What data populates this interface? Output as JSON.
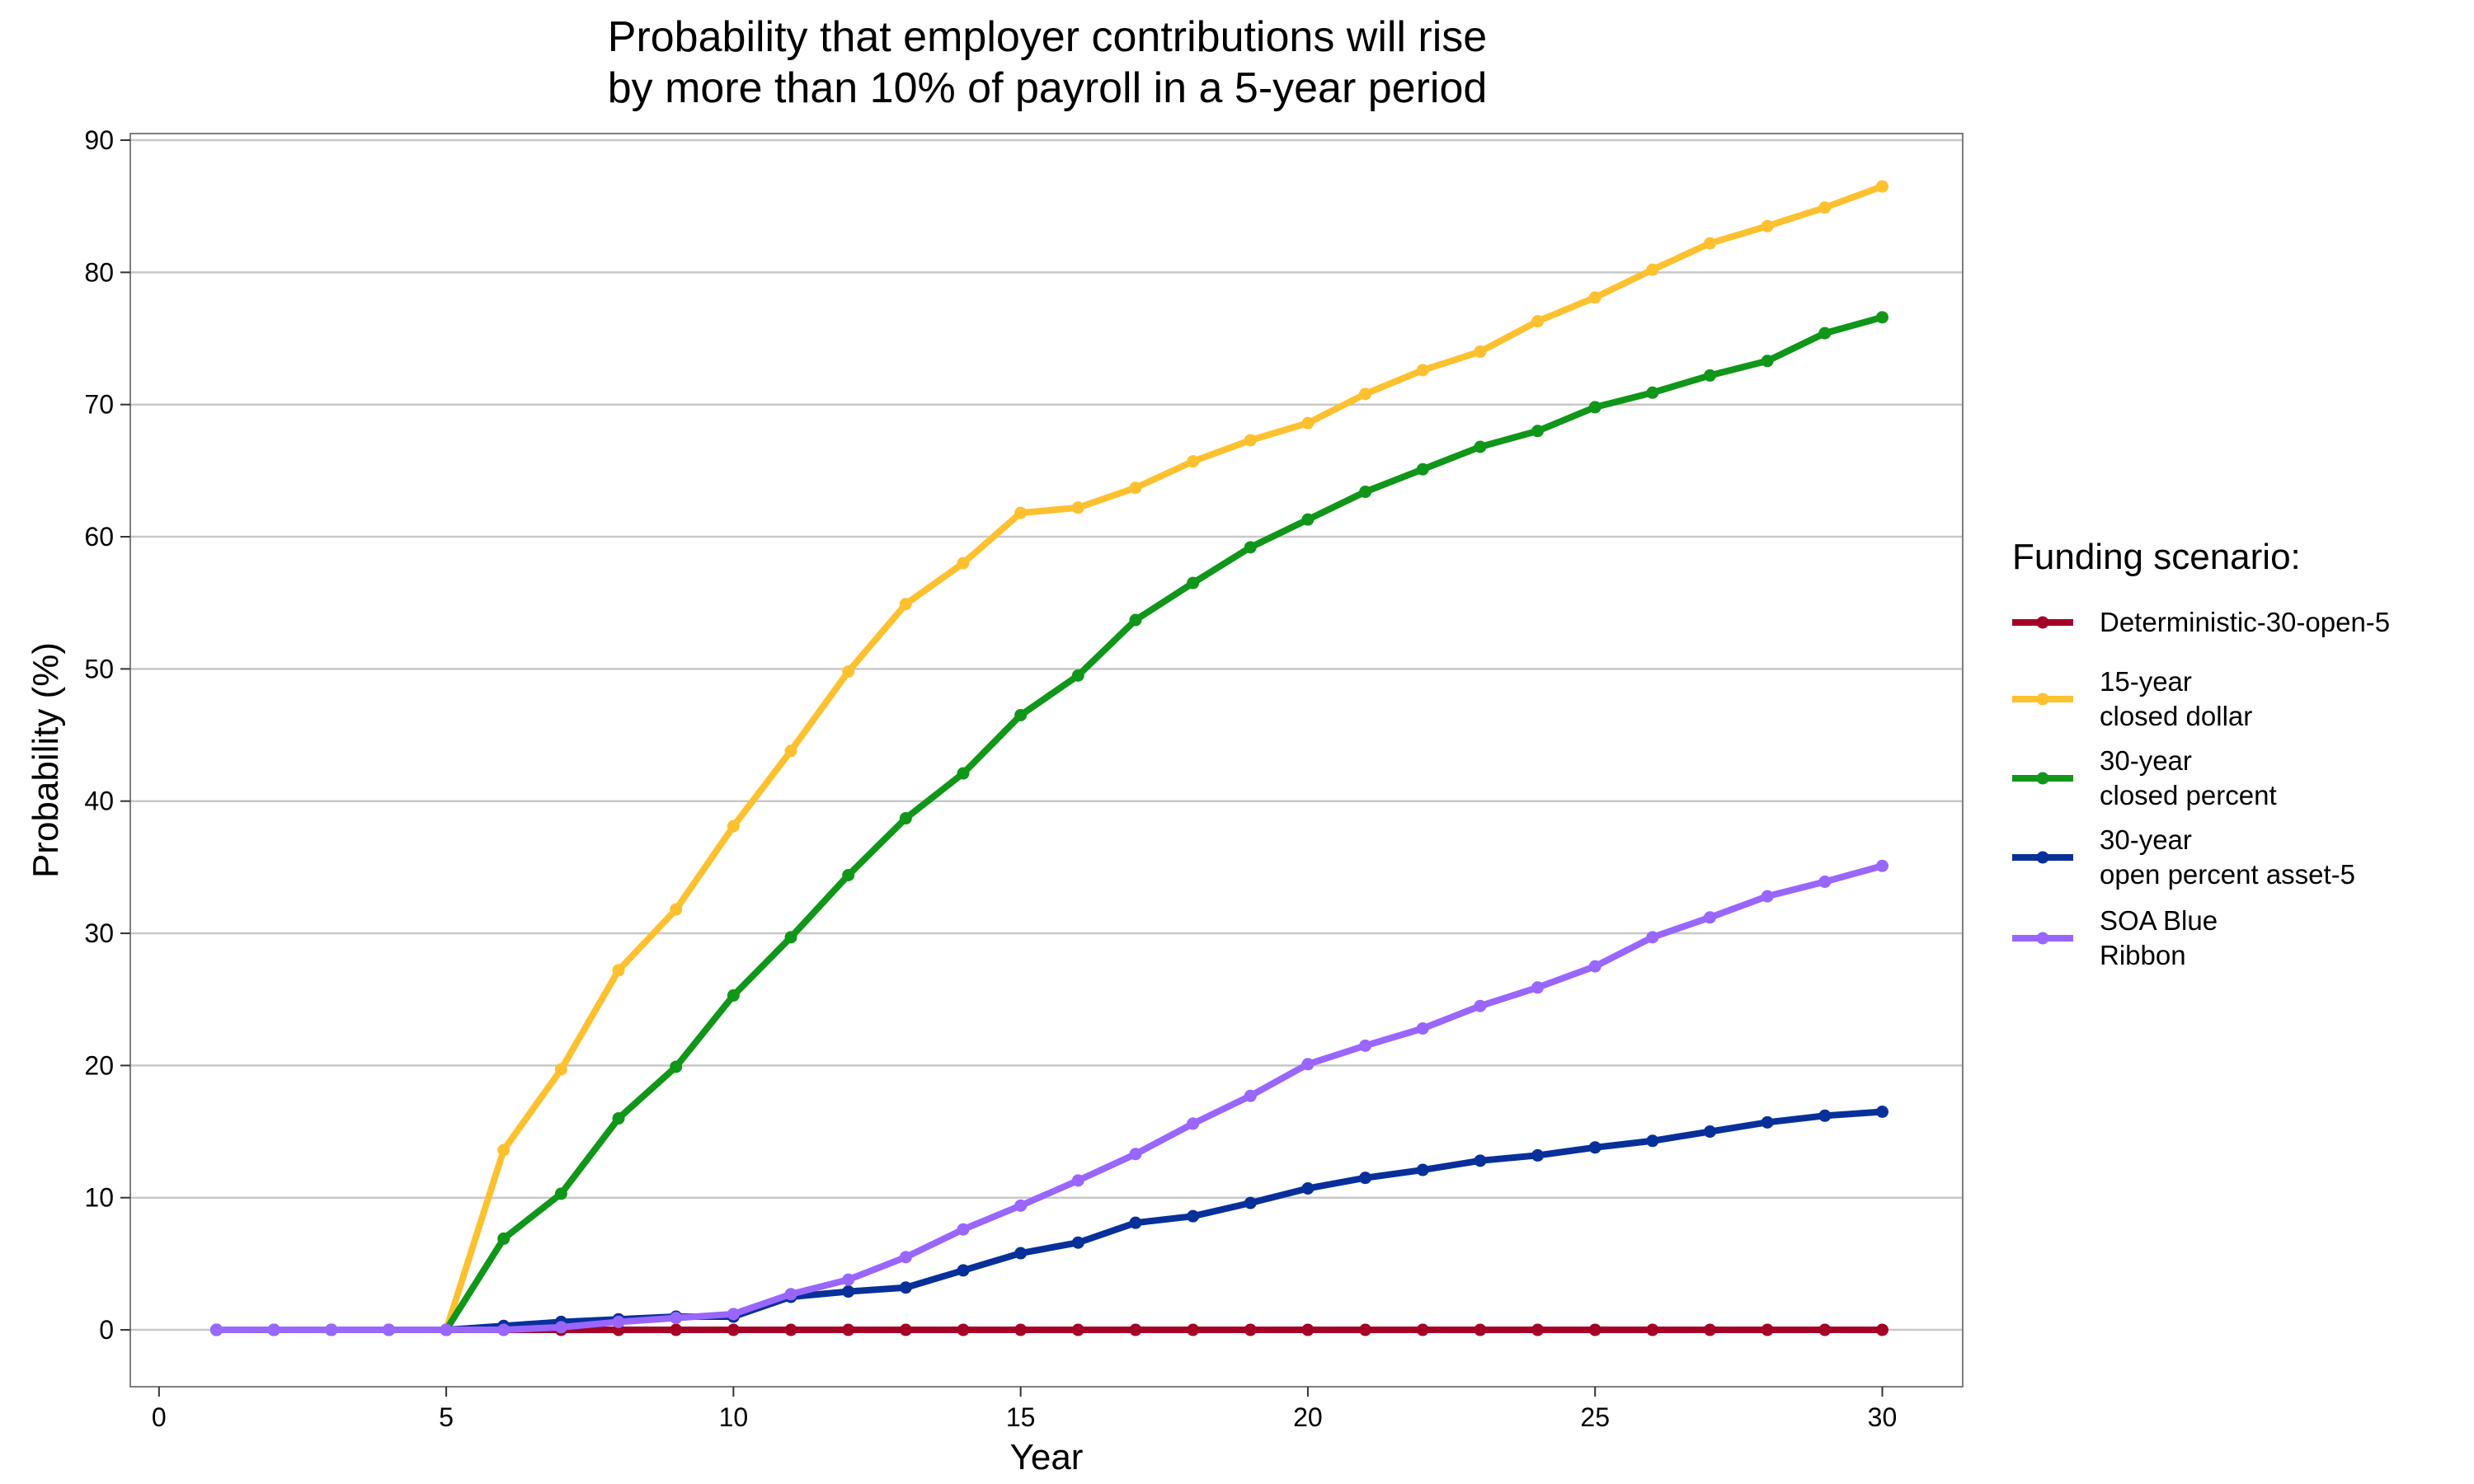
{
  "chart_data": {
    "type": "line",
    "title_lines": [
      "Probability that employer contributions will rise",
      "by more than 10% of payroll in a 5-year period"
    ],
    "xlabel": "Year",
    "ylabel": "Probability (%)",
    "xlim": [
      -0.5,
      31.4
    ],
    "ylim": [
      -4.3,
      90.5
    ],
    "x_ticks": [
      0,
      5,
      10,
      15,
      20,
      25,
      30
    ],
    "y_ticks": [
      0,
      10,
      20,
      30,
      40,
      50,
      60,
      70,
      80,
      90
    ],
    "grid": "horizontal",
    "legend_placement": "right",
    "legend_title": "Funding scenario:",
    "x": [
      1,
      2,
      3,
      4,
      5,
      6,
      7,
      8,
      9,
      10,
      11,
      12,
      13,
      14,
      15,
      16,
      17,
      18,
      19,
      20,
      21,
      22,
      23,
      24,
      25,
      26,
      27,
      28,
      29,
      30
    ],
    "series": [
      {
        "name": "Deterministic-30-open-5",
        "legend_lines": [
          "Deterministic-30-open-5"
        ],
        "color": "#a50026",
        "values": [
          0,
          0,
          0,
          0,
          0,
          0,
          0,
          0,
          0,
          0,
          0,
          0,
          0,
          0,
          0,
          0,
          0,
          0,
          0,
          0,
          0,
          0,
          0,
          0,
          0,
          0,
          0,
          0,
          0,
          0
        ]
      },
      {
        "name": "15-year closed dollar",
        "legend_lines": [
          "15-year",
          "closed dollar"
        ],
        "color": "#fdc130",
        "values": [
          0,
          0,
          0,
          0,
          0,
          13.6,
          19.7,
          27.2,
          31.8,
          38.1,
          43.8,
          49.8,
          54.9,
          58.0,
          61.8,
          62.2,
          63.7,
          65.7,
          67.3,
          68.6,
          70.8,
          72.6,
          74.0,
          76.3,
          78.1,
          80.2,
          82.2,
          83.5,
          84.9,
          86.5
        ]
      },
      {
        "name": "30-year closed percent",
        "legend_lines": [
          "30-year",
          "closed percent"
        ],
        "color": "#109618",
        "values": [
          0,
          0,
          0,
          0,
          0,
          6.9,
          10.3,
          16.0,
          19.9,
          25.3,
          29.7,
          34.4,
          38.7,
          42.1,
          46.5,
          49.5,
          53.7,
          56.5,
          59.2,
          61.3,
          63.4,
          65.1,
          66.8,
          68.0,
          69.8,
          70.9,
          72.2,
          73.3,
          75.4,
          76.6
        ]
      },
      {
        "name": "30-year open percent asset-5",
        "legend_lines": [
          "30-year",
          "open percent asset-5"
        ],
        "color": "#08309a",
        "values": [
          0,
          0,
          0,
          0,
          0,
          0.3,
          0.6,
          0.8,
          1.0,
          1.0,
          2.5,
          2.9,
          3.2,
          4.5,
          5.8,
          6.6,
          8.1,
          8.6,
          9.6,
          10.7,
          11.5,
          12.1,
          12.8,
          13.2,
          13.8,
          14.3,
          15.0,
          15.7,
          16.2,
          16.5
        ]
      },
      {
        "name": "SOA Blue Ribbon",
        "legend_lines": [
          "SOA Blue",
          "Ribbon"
        ],
        "color": "#9966ff",
        "values": [
          0,
          0,
          0,
          0,
          0,
          0,
          0.2,
          0.6,
          0.9,
          1.2,
          2.7,
          3.8,
          5.5,
          7.6,
          9.4,
          11.3,
          13.3,
          15.6,
          17.7,
          20.1,
          21.5,
          22.8,
          24.5,
          25.9,
          27.5,
          29.7,
          31.2,
          32.8,
          33.9,
          35.1
        ]
      }
    ]
  }
}
